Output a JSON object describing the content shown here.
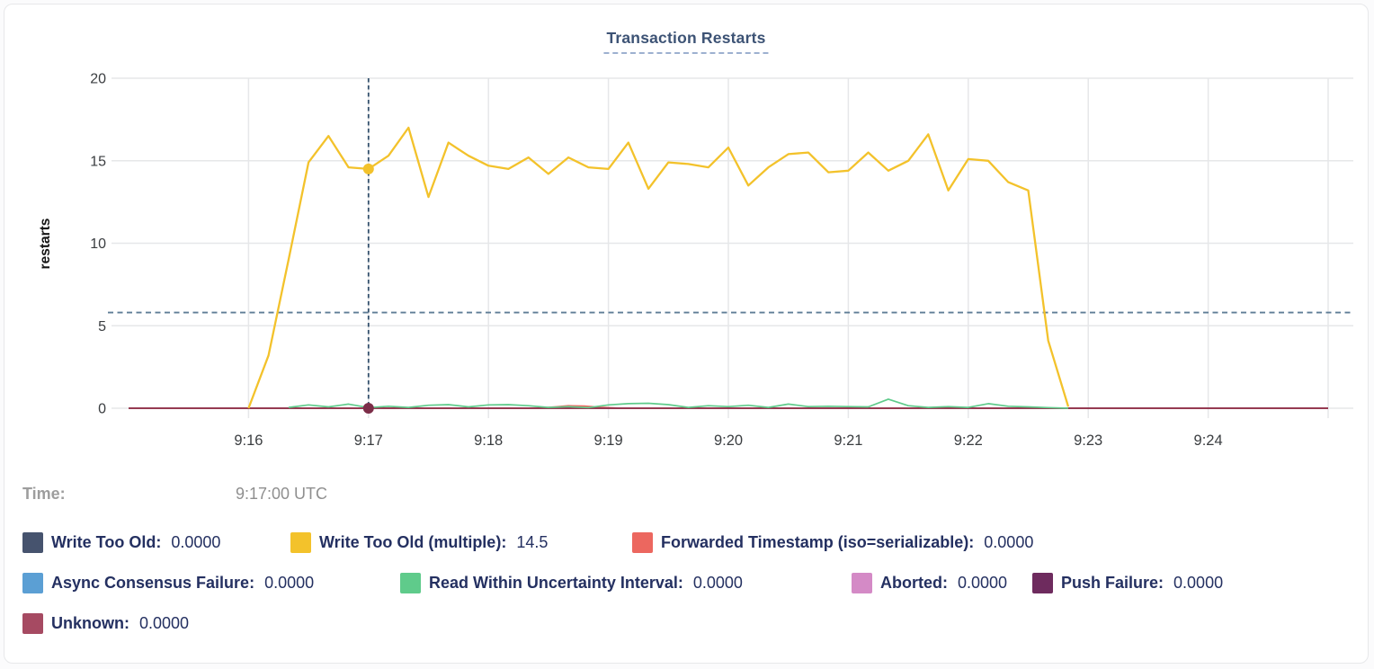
{
  "title": "Transaction Restarts",
  "tooltip": {
    "time_label": "Time:",
    "time_value": "9:17:00 UTC"
  },
  "colors": {
    "title_text": "#3d5375",
    "title_underline": "#9db0d0",
    "grid": "#e6e7e9",
    "tick_text": "#3a3d40",
    "axis_label_text": "#141414",
    "threshold_dashed_line": "#5f7d96",
    "crosshair_dashed_line": "#33506c",
    "legend_text": "#243061",
    "time_text": "#9d9d9d"
  },
  "chart_data": {
    "type": "line",
    "title": "Transaction Restarts",
    "xlabel": "",
    "ylabel": "restarts",
    "ylim": [
      0,
      20
    ],
    "y_ticks": [
      0,
      5,
      10,
      15,
      20
    ],
    "x_domain_utc": [
      "9:15:00",
      "9:25:00"
    ],
    "x_tick_labels": [
      "9:16",
      "9:17",
      "9:18",
      "9:19",
      "9:20",
      "9:21",
      "9:22",
      "9:23",
      "9:24"
    ],
    "x_tick_offsets_s": [
      60,
      120,
      180,
      240,
      300,
      360,
      420,
      480,
      540
    ],
    "grid": true,
    "legend_position": "bottom",
    "threshold_dashed_line_y": 5.8,
    "hover": {
      "time": "9:17:00 UTC",
      "x_offset_s": 120,
      "dots": [
        {
          "series": "Write Too Old (multiple)",
          "value": 14.5,
          "color": "#f3c22b"
        },
        {
          "series": "Unknown",
          "value": 0,
          "color": "#7c2d48"
        }
      ]
    },
    "series": [
      {
        "name": "Write Too Old",
        "color": "#46536e",
        "legend_value": "0.0000",
        "legend_row": 0,
        "points": [
          [
            0,
            0
          ],
          [
            600,
            0
          ]
        ]
      },
      {
        "name": "Write Too Old (multiple)",
        "color": "#f3c22b",
        "legend_value": "14.5",
        "legend_row": 0,
        "points": [
          [
            60,
            0
          ],
          [
            70,
            3.2
          ],
          [
            80,
            9
          ],
          [
            90,
            14.9
          ],
          [
            100,
            16.5
          ],
          [
            110,
            14.6
          ],
          [
            120,
            14.5
          ],
          [
            130,
            15.3
          ],
          [
            140,
            17
          ],
          [
            150,
            12.8
          ],
          [
            160,
            16.1
          ],
          [
            170,
            15.3
          ],
          [
            180,
            14.7
          ],
          [
            190,
            14.5
          ],
          [
            200,
            15.2
          ],
          [
            210,
            14.2
          ],
          [
            220,
            15.2
          ],
          [
            230,
            14.6
          ],
          [
            240,
            14.5
          ],
          [
            250,
            16.1
          ],
          [
            260,
            13.3
          ],
          [
            270,
            14.9
          ],
          [
            280,
            14.8
          ],
          [
            290,
            14.6
          ],
          [
            300,
            15.8
          ],
          [
            310,
            13.5
          ],
          [
            320,
            14.6
          ],
          [
            330,
            15.4
          ],
          [
            340,
            15.5
          ],
          [
            350,
            14.3
          ],
          [
            360,
            14.4
          ],
          [
            370,
            15.5
          ],
          [
            380,
            14.4
          ],
          [
            390,
            15
          ],
          [
            400,
            16.6
          ],
          [
            410,
            13.2
          ],
          [
            420,
            15.1
          ],
          [
            430,
            15
          ],
          [
            440,
            13.7
          ],
          [
            450,
            13.2
          ],
          [
            460,
            4.1
          ],
          [
            470,
            0.1
          ]
        ]
      },
      {
        "name": "Forwarded Timestamp (iso=serializable)",
        "color": "#ec675f",
        "legend_value": "0.0000",
        "legend_row": 0,
        "points": [
          [
            0,
            0
          ],
          [
            205,
            0
          ],
          [
            213,
            0.07
          ],
          [
            220,
            0.14
          ],
          [
            228,
            0.12
          ],
          [
            236,
            0.05
          ],
          [
            245,
            0
          ],
          [
            600,
            0
          ]
        ]
      },
      {
        "name": "Async Consensus Failure",
        "color": "#5b9fd4",
        "legend_value": "0.0000",
        "legend_row": 1,
        "points": [
          [
            0,
            0
          ],
          [
            600,
            0
          ]
        ]
      },
      {
        "name": "Read Within Uncertainty Interval",
        "color": "#5fcb8b",
        "legend_value": "0.0000",
        "legend_row": 1,
        "points": [
          [
            80,
            0.05
          ],
          [
            90,
            0.2
          ],
          [
            100,
            0.08
          ],
          [
            110,
            0.25
          ],
          [
            120,
            0.04
          ],
          [
            130,
            0.12
          ],
          [
            140,
            0.05
          ],
          [
            150,
            0.18
          ],
          [
            160,
            0.22
          ],
          [
            170,
            0.08
          ],
          [
            180,
            0.2
          ],
          [
            190,
            0.22
          ],
          [
            200,
            0.15
          ],
          [
            210,
            0.05
          ],
          [
            220,
            0.1
          ],
          [
            230,
            0.04
          ],
          [
            240,
            0.2
          ],
          [
            250,
            0.28
          ],
          [
            260,
            0.3
          ],
          [
            270,
            0.22
          ],
          [
            280,
            0.05
          ],
          [
            290,
            0.15
          ],
          [
            300,
            0.1
          ],
          [
            310,
            0.18
          ],
          [
            320,
            0.05
          ],
          [
            330,
            0.25
          ],
          [
            340,
            0.1
          ],
          [
            350,
            0.12
          ],
          [
            360,
            0.1
          ],
          [
            370,
            0.08
          ],
          [
            380,
            0.55
          ],
          [
            390,
            0.15
          ],
          [
            400,
            0.05
          ],
          [
            410,
            0.1
          ],
          [
            420,
            0.05
          ],
          [
            430,
            0.28
          ],
          [
            440,
            0.12
          ],
          [
            450,
            0.08
          ],
          [
            460,
            0.04
          ],
          [
            470,
            0
          ]
        ]
      },
      {
        "name": "Aborted",
        "color": "#d48ac6",
        "legend_value": "0.0000",
        "legend_row": 1,
        "points": [
          [
            0,
            0
          ],
          [
            600,
            0
          ]
        ]
      },
      {
        "name": "Push Failure",
        "color": "#6e2b5e",
        "legend_value": "0.0000",
        "legend_row": 1,
        "points": [
          [
            0,
            0
          ],
          [
            600,
            0
          ]
        ]
      },
      {
        "name": "Unknown",
        "color": "#a64a62",
        "line_color": "#963a52",
        "legend_value": "0.0000",
        "legend_row": 2,
        "points": [
          [
            0,
            0
          ],
          [
            600,
            0
          ]
        ]
      }
    ]
  }
}
